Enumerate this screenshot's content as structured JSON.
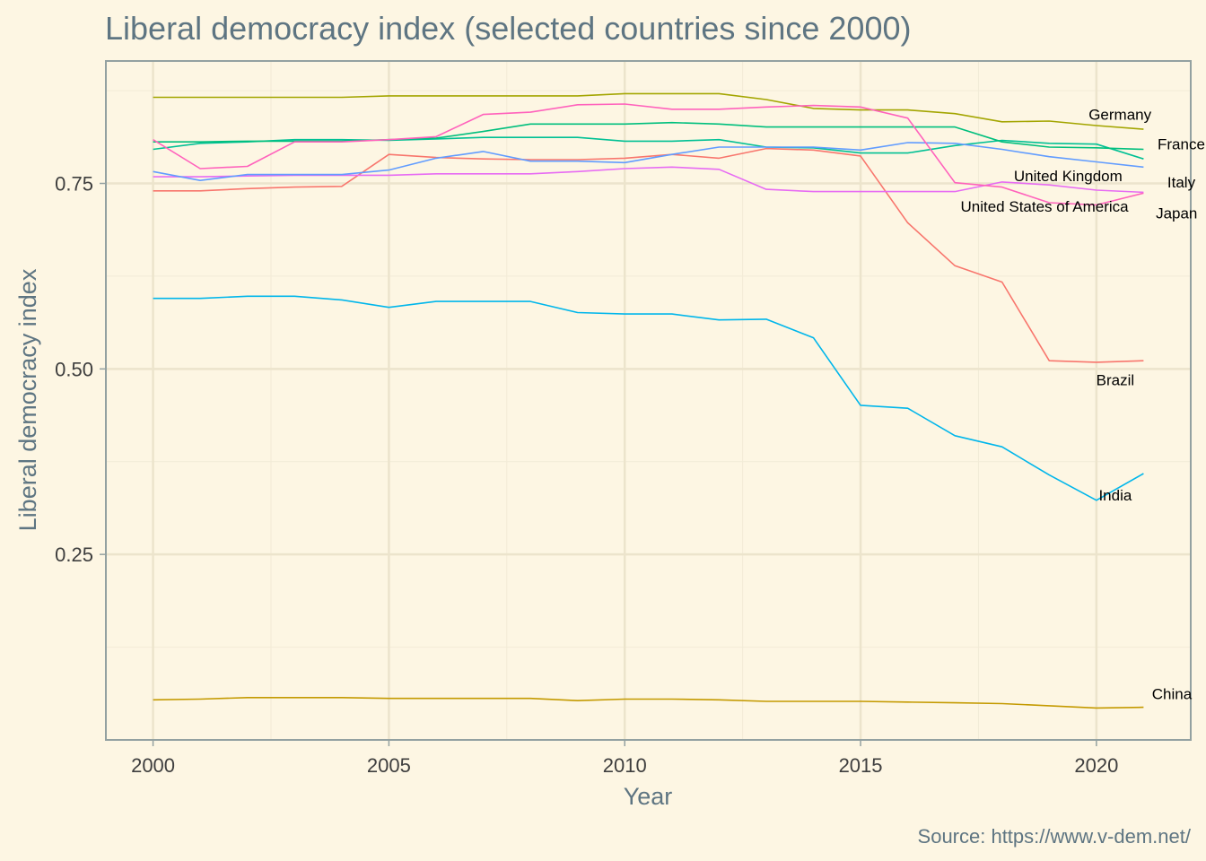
{
  "chart_data": {
    "type": "line",
    "title": "Liberal democracy index (selected countries since 2000)",
    "xlabel": "Year",
    "ylabel": "Liberal democracy index",
    "caption": "Source: https://www.v-dem.net/",
    "xlim": [
      1999,
      2022
    ],
    "ylim": [
      0.0,
      0.915
    ],
    "x_ticks": [
      2000,
      2005,
      2010,
      2015,
      2020
    ],
    "x_tick_labels": [
      "2000",
      "2005",
      "2010",
      "2015",
      "2020"
    ],
    "y_ticks": [
      0.25,
      0.5,
      0.75
    ],
    "y_tick_labels": [
      "0.25",
      "0.50",
      "0.75"
    ],
    "y_minor": [
      0.125,
      0.375,
      0.625,
      0.875
    ],
    "x_minor": [
      2002.5,
      2007.5,
      2012.5,
      2017.5
    ],
    "grid": true,
    "legend": "none",
    "years": [
      2000,
      2001,
      2002,
      2003,
      2004,
      2005,
      2006,
      2007,
      2008,
      2009,
      2010,
      2011,
      2012,
      2013,
      2014,
      2015,
      2016,
      2017,
      2018,
      2019,
      2020,
      2021
    ],
    "series": [
      {
        "name": "Brazil",
        "color": "#f8766d",
        "values": [
          0.74,
          0.74,
          0.743,
          0.745,
          0.746,
          0.789,
          0.785,
          0.783,
          0.782,
          0.782,
          0.784,
          0.789,
          0.784,
          0.797,
          0.795,
          0.787,
          0.697,
          0.639,
          0.617,
          0.511,
          0.509,
          0.511
        ]
      },
      {
        "name": "China",
        "color": "#c49a00",
        "values": [
          0.054,
          0.055,
          0.057,
          0.057,
          0.057,
          0.056,
          0.056,
          0.056,
          0.056,
          0.053,
          0.055,
          0.055,
          0.054,
          0.052,
          0.052,
          0.052,
          0.051,
          0.05,
          0.049,
          0.046,
          0.043,
          0.044
        ]
      },
      {
        "name": "France",
        "color": "#00c094",
        "values": [
          0.796,
          0.804,
          0.806,
          0.809,
          0.809,
          0.808,
          0.81,
          0.812,
          0.812,
          0.812,
          0.807,
          0.807,
          0.809,
          0.799,
          0.798,
          0.791,
          0.791,
          0.801,
          0.808,
          0.804,
          0.803,
          0.783
        ]
      },
      {
        "name": "Germany",
        "color": "#a3a500",
        "values": [
          0.866,
          0.866,
          0.866,
          0.866,
          0.866,
          0.868,
          0.868,
          0.868,
          0.868,
          0.868,
          0.871,
          0.871,
          0.871,
          0.863,
          0.851,
          0.849,
          0.849,
          0.844,
          0.833,
          0.834,
          0.828,
          0.823
        ]
      },
      {
        "name": "India",
        "color": "#00b6eb",
        "values": [
          0.595,
          0.595,
          0.598,
          0.598,
          0.593,
          0.583,
          0.591,
          0.591,
          0.591,
          0.576,
          0.574,
          0.574,
          0.566,
          0.567,
          0.542,
          0.451,
          0.447,
          0.41,
          0.395,
          0.357,
          0.323,
          0.359
        ]
      },
      {
        "name": "Italy",
        "color": "#00bf7d",
        "values": [
          0.806,
          0.806,
          0.807,
          0.807,
          0.807,
          0.809,
          0.811,
          0.82,
          0.83,
          0.83,
          0.83,
          0.832,
          0.83,
          0.826,
          0.826,
          0.826,
          0.826,
          0.826,
          0.806,
          0.799,
          0.798,
          0.796
        ]
      },
      {
        "name": "Japan",
        "color": "#e76bf3",
        "values": [
          0.759,
          0.759,
          0.76,
          0.761,
          0.761,
          0.761,
          0.763,
          0.763,
          0.763,
          0.766,
          0.77,
          0.772,
          0.769,
          0.742,
          0.739,
          0.739,
          0.739,
          0.739,
          0.752,
          0.748,
          0.741,
          0.738
        ]
      },
      {
        "name": "United Kingdom",
        "color": "#619cff",
        "values": [
          0.766,
          0.754,
          0.762,
          0.762,
          0.762,
          0.768,
          0.784,
          0.793,
          0.78,
          0.78,
          0.778,
          0.789,
          0.799,
          0.799,
          0.799,
          0.795,
          0.805,
          0.804,
          0.796,
          0.786,
          0.779,
          0.772
        ]
      },
      {
        "name": "United States of America",
        "color": "#ff62bc",
        "values": [
          0.809,
          0.77,
          0.773,
          0.806,
          0.806,
          0.809,
          0.813,
          0.843,
          0.846,
          0.856,
          0.857,
          0.85,
          0.85,
          0.853,
          0.855,
          0.853,
          0.838,
          0.751,
          0.745,
          0.724,
          0.721,
          0.737
        ]
      }
    ],
    "label_anchors": {
      "Brazil": [
        2020.4,
        0.485
      ],
      "China": [
        2021.6,
        0.062
      ],
      "France": [
        2021.8,
        0.803
      ],
      "Germany": [
        2020.5,
        0.843
      ],
      "India": [
        2020.4,
        0.33
      ],
      "Italy": [
        2021.8,
        0.752
      ],
      "Japan": [
        2021.7,
        0.71
      ],
      "United Kingdom": [
        2019.4,
        0.76
      ],
      "United States of America": [
        2018.9,
        0.719
      ]
    }
  }
}
